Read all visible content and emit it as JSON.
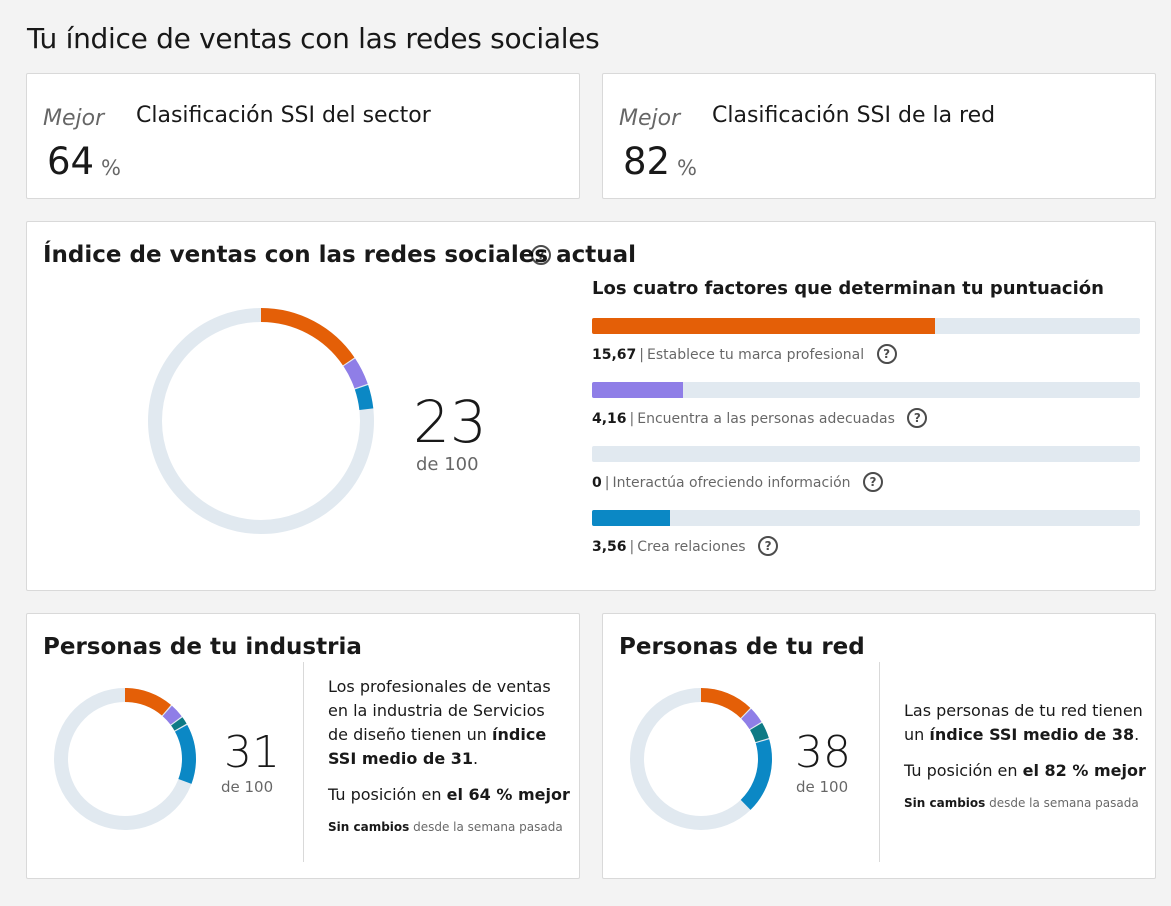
{
  "page": {
    "title": "Tu índice de ventas con las redes sociales"
  },
  "industry_rank": {
    "label": "Mejor",
    "value": "64",
    "unit": "%",
    "title": "Clasificación SSI del sector"
  },
  "network_rank": {
    "label": "Mejor",
    "value": "82",
    "unit": "%",
    "title": "Clasificación SSI de la red"
  },
  "current": {
    "title": "Índice de ventas con las redes sociales actual",
    "score": "23",
    "of_label": "de 100",
    "factors_title": "Los cuatro factores que determinan tu puntuación",
    "factors": [
      {
        "value": "15,67",
        "label": "Establece tu marca profesional",
        "score": 15.67,
        "max": 25,
        "color": "#e45f07"
      },
      {
        "value": "4,16",
        "label": "Encuentra a las personas adecuadas",
        "score": 4.16,
        "max": 25,
        "color": "#8f7ee7"
      },
      {
        "value": "0",
        "label": "Interactúa ofreciendo información",
        "score": 0,
        "max": 25,
        "color": "#0d7a85"
      },
      {
        "value": "3,56",
        "label": "Crea relaciones",
        "score": 3.56,
        "max": 25,
        "color": "#0b88c5"
      }
    ]
  },
  "industry": {
    "title": "Personas de tu industria",
    "score": "31",
    "of_label": "de 100",
    "desc_pre": "Los profesionales de ventas en la industria de Servicios de diseño tienen un",
    "desc_bold": "índice SSI medio de 31",
    "desc_post": ".",
    "position_pre": "Tu posición en",
    "position_bold": "el 64 % mejor",
    "change_bold": "Sin cambios",
    "change_rest": "desde la semana pasada",
    "segments": [
      11.5,
      3.5,
      2.0,
      14.0
    ]
  },
  "network": {
    "title": "Personas de tu red",
    "score": "38",
    "of_label": "de 100",
    "desc_pre": "Las personas de tu red tienen un",
    "desc_bold": "índice SSI medio de 38",
    "desc_post": ".",
    "position_pre": "Tu posición en",
    "position_bold": "el 82 % mejor",
    "change_bold": "Sin cambios",
    "change_rest": "desde la semana pasada",
    "segments": [
      12.5,
      4.0,
      4.0,
      17.5
    ]
  },
  "colors": {
    "brand": "#e45f07",
    "find": "#8f7ee7",
    "engage": "#0d7a85",
    "relationships": "#0b88c5",
    "track": "#e1e9f0"
  }
}
